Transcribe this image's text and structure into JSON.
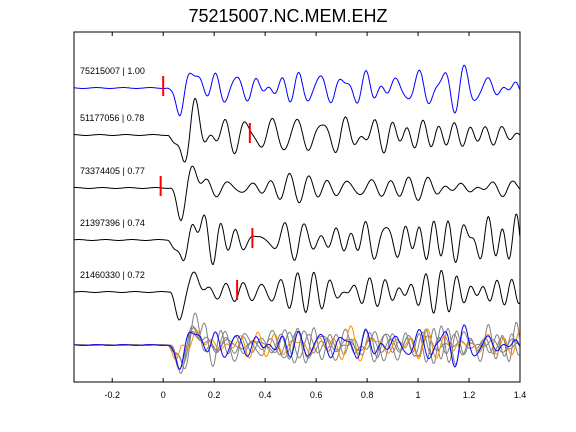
{
  "chart_data": {
    "type": "line",
    "title": "75215007.NC.MEM.EHZ",
    "xlabel": "",
    "ylabel": "",
    "xlim": [
      -0.35,
      1.4
    ],
    "xticks": [
      -0.2,
      0,
      0.2,
      0.4,
      0.6,
      0.8,
      1,
      1.2,
      1.4
    ],
    "xtick_labels": [
      "-0.2",
      "0",
      "0.2",
      "0.4",
      "0.6",
      "0.8",
      "1",
      "1.2",
      "1.4"
    ],
    "grid": false,
    "colors": {
      "reference": "#0000ff",
      "trace": "#000000",
      "pick": "#ff0000",
      "stack": "#808080",
      "orange": "#ff8c00"
    },
    "series": [
      {
        "name": "75215007 | 1.00",
        "pick": 0.0,
        "color": "#0000ff"
      },
      {
        "name": "51177056 | 0.78",
        "pick": 0.34,
        "color": "#000000"
      },
      {
        "name": "73374405 | 0.77",
        "pick": -0.01,
        "color": "#000000"
      },
      {
        "name": "21397396 | 0.74",
        "pick": 0.35,
        "color": "#000000"
      },
      {
        "name": "21460330 | 0.72",
        "pick": 0.29,
        "color": "#000000"
      }
    ]
  }
}
